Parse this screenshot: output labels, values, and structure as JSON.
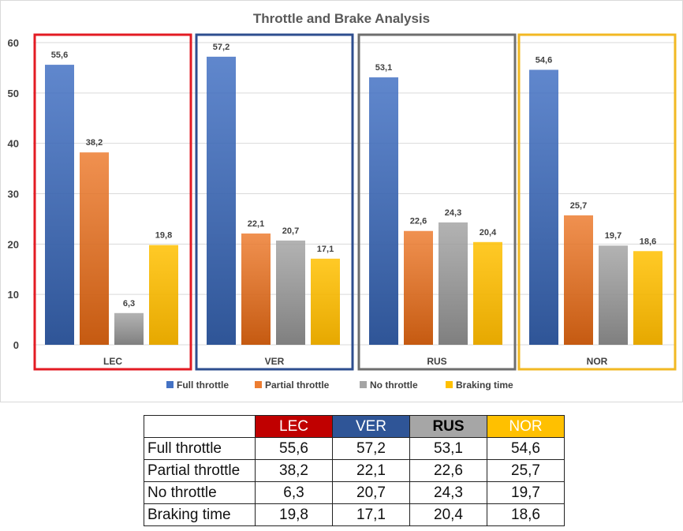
{
  "chart_data": {
    "type": "bar",
    "title": "Throttle and Brake Analysis",
    "categories": [
      "LEC",
      "VER",
      "RUS",
      "NOR"
    ],
    "series": [
      {
        "name": "Full throttle",
        "values": [
          55.6,
          57.2,
          53.1,
          54.6
        ],
        "labels": [
          "55,6",
          "57,2",
          "53,1",
          "54,6"
        ]
      },
      {
        "name": "Partial throttle",
        "values": [
          38.2,
          22.1,
          22.6,
          25.7
        ],
        "labels": [
          "38,2",
          "22,1",
          "22,6",
          "25,7"
        ]
      },
      {
        "name": "No throttle",
        "values": [
          6.3,
          20.7,
          24.3,
          19.7
        ],
        "labels": [
          "6,3",
          "20,7",
          "24,3",
          "19,7"
        ]
      },
      {
        "name": "Braking time",
        "values": [
          19.8,
          17.1,
          20.4,
          18.6
        ],
        "labels": [
          "19,8",
          "17,1",
          "20,4",
          "18,6"
        ]
      }
    ],
    "ylim": [
      0,
      60
    ],
    "yticks": [
      "0",
      "10",
      "20",
      "30",
      "40",
      "50",
      "60"
    ],
    "grid": true,
    "legend": "bottom"
  },
  "colors": {
    "series": [
      "#4472C4",
      "#ED7D31",
      "#A5A5A5",
      "#FFC000"
    ],
    "series_dark": [
      "#2F5597",
      "#C55A11",
      "#7F7F7F",
      "#E6A800"
    ],
    "group_frames": [
      "#E31B23",
      "#2E4E8F",
      "#6E6E6E",
      "#F2B823"
    ]
  },
  "table": {
    "headers": [
      "LEC",
      "VER",
      "RUS",
      "NOR"
    ],
    "header_colors": [
      "#C00000",
      "#2F5597",
      "#A6A6A6",
      "#FFC000"
    ],
    "header_text_colors": [
      "#FFFFFF",
      "#FFFFFF",
      "#000000",
      "#FFFFFF"
    ],
    "rows": [
      {
        "label": "Full throttle",
        "values": [
          "55,6",
          "57,2",
          "53,1",
          "54,6"
        ]
      },
      {
        "label": "Partial throttle",
        "values": [
          "38,2",
          "22,1",
          "22,6",
          "25,7"
        ]
      },
      {
        "label": "No throttle",
        "values": [
          "6,3",
          "20,7",
          "24,3",
          "19,7"
        ]
      },
      {
        "label": "Braking time",
        "values": [
          "19,8",
          "17,1",
          "20,4",
          "18,6"
        ]
      }
    ]
  }
}
